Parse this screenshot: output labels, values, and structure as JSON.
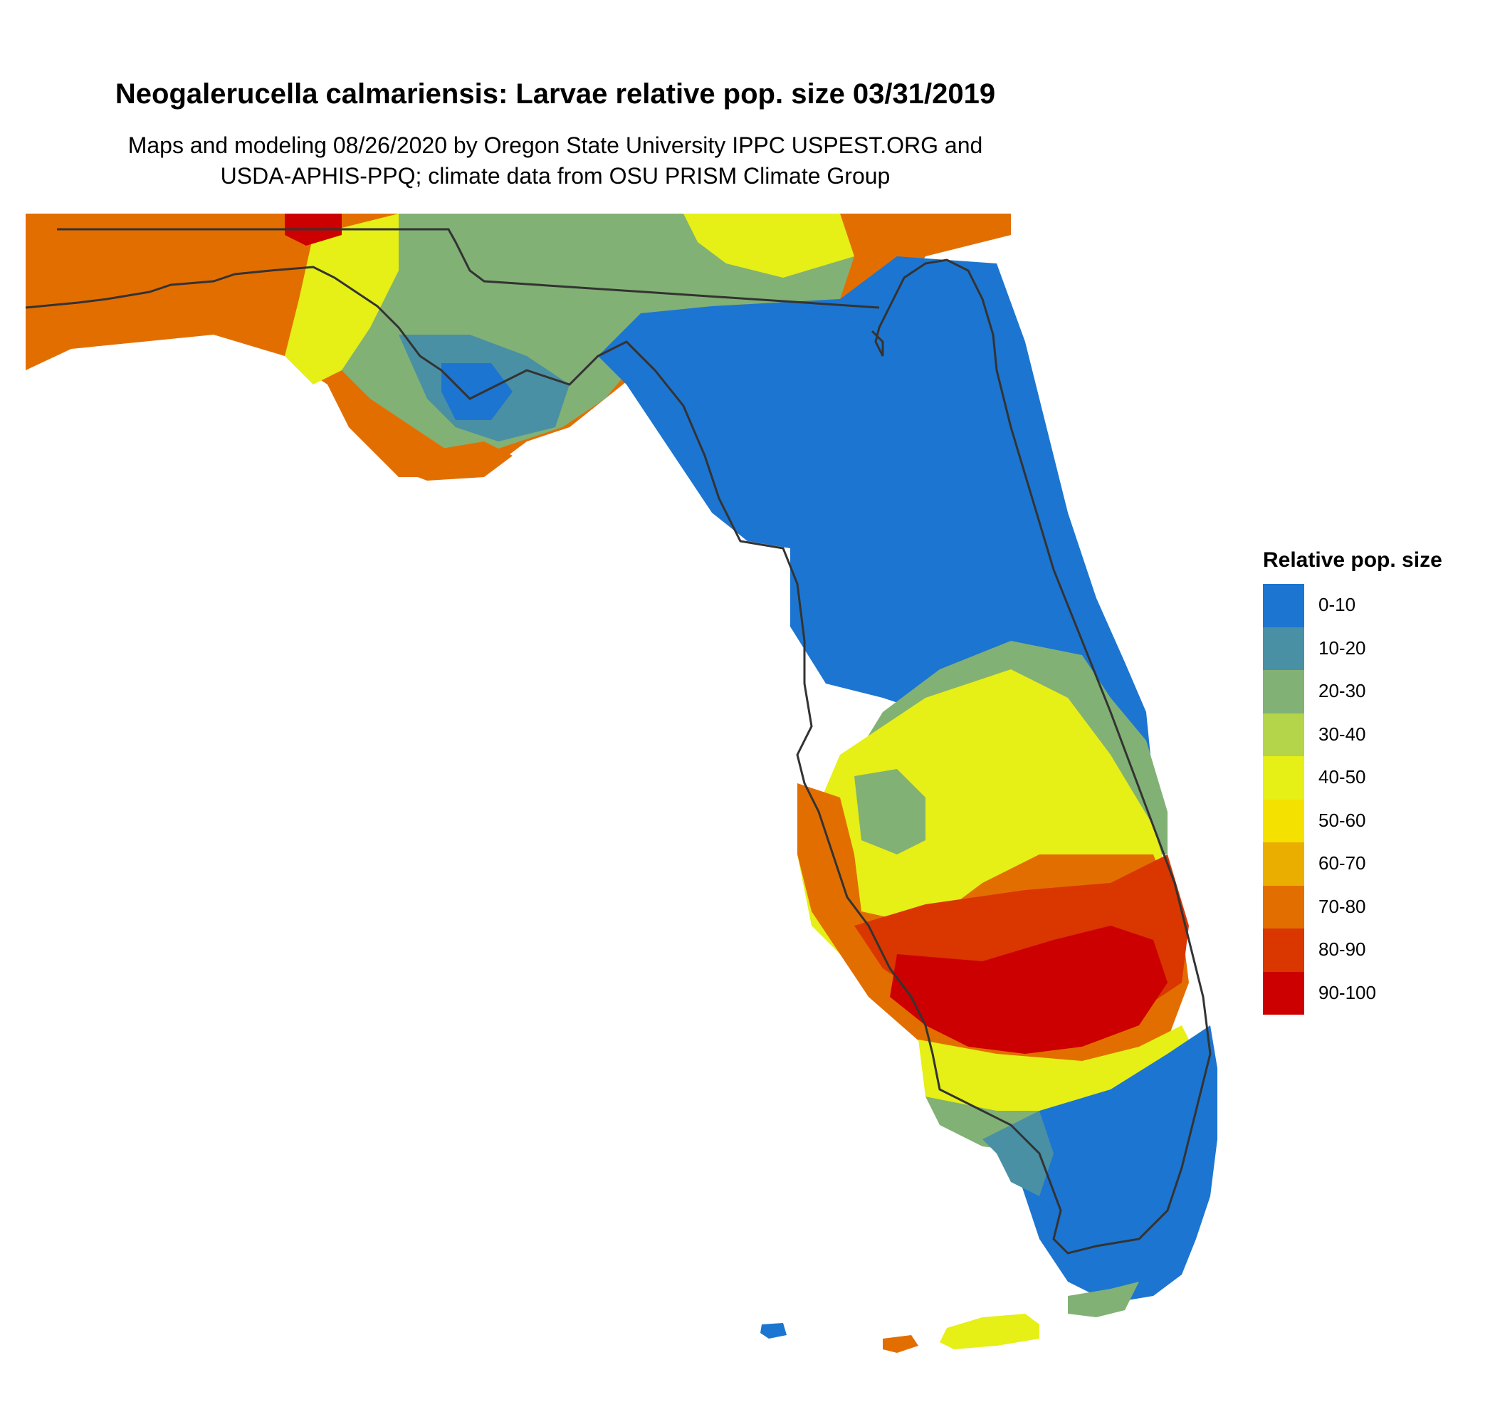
{
  "title": "Neogalerucella calmariensis: Larvae relative pop. size 03/31/2019",
  "subtitle_line1": "Maps and modeling 08/26/2020 by Oregon State University IPPC USPEST.ORG and",
  "subtitle_line2": "USDA-APHIS-PPQ; climate data from OSU PRISM Climate Group",
  "legend": {
    "title": "Relative pop. size",
    "items": [
      {
        "label": "0-10",
        "color": "#1c75d0"
      },
      {
        "label": "10-20",
        "color": "#4a90a4"
      },
      {
        "label": "20-30",
        "color": "#82b175"
      },
      {
        "label": "30-40",
        "color": "#b4d44a"
      },
      {
        "label": "40-50",
        "color": "#e6ef16"
      },
      {
        "label": "50-60",
        "color": "#f4e100"
      },
      {
        "label": "60-70",
        "color": "#eaae00"
      },
      {
        "label": "70-80",
        "color": "#e36e00"
      },
      {
        "label": "80-90",
        "color": "#d93600"
      },
      {
        "label": "90-100",
        "color": "#cc0000"
      }
    ]
  },
  "map": {
    "region": "Florida",
    "outline_color": "#333333"
  }
}
